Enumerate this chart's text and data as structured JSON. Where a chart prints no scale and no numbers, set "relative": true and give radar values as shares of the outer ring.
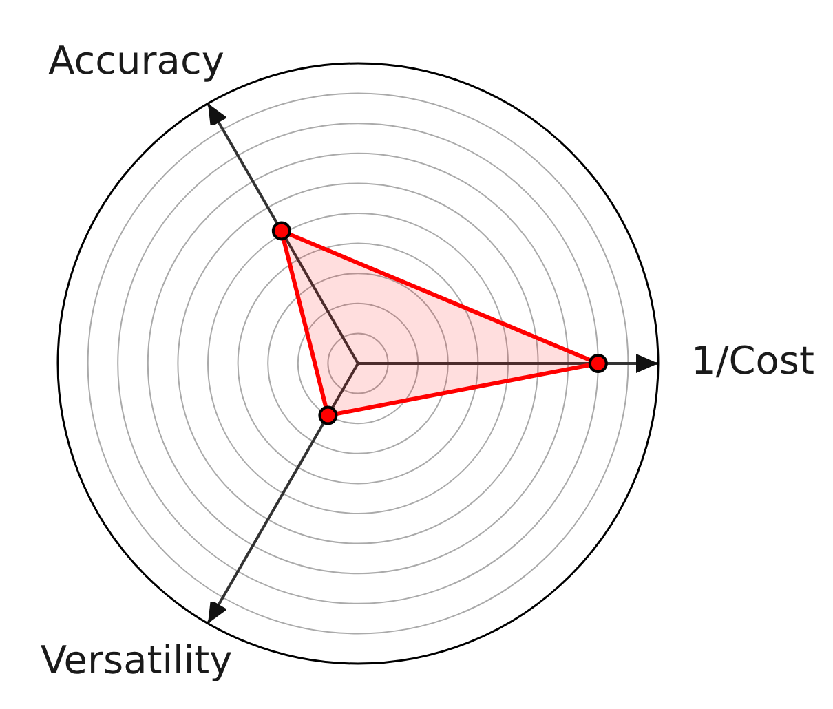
{
  "chart_data": {
    "type": "radar",
    "relative": true,
    "categories": [
      "1/Cost",
      "Versatility",
      "Accuracy"
    ],
    "grid": true,
    "marker": "circle",
    "legend": false,
    "series": [
      {
        "color": "#ff0000",
        "values": [
          0.8,
          0.2,
          0.51
        ]
      }
    ]
  }
}
